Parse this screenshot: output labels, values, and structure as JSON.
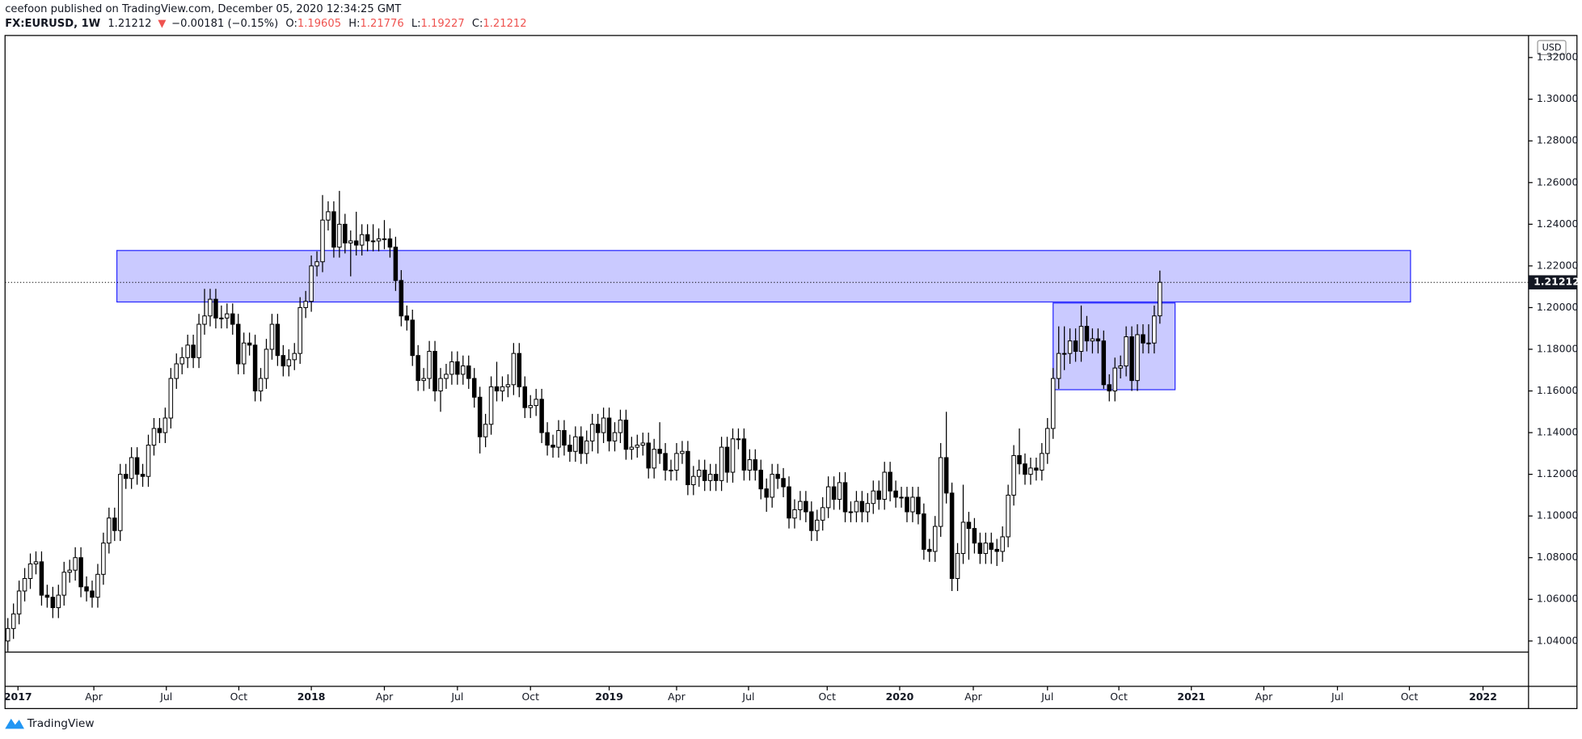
{
  "header": {
    "published": "ceefoon published on TradingView.com, December 05, 2020 12:34:25 GMT",
    "symbol": "FX:EURUSD, 1W",
    "last": "1.21212",
    "change_arrow": "▼",
    "change": "−0.00181 (−0.15%)",
    "ohlc": [
      {
        "label": "O:",
        "value": "1.19605"
      },
      {
        "label": "H:",
        "value": "1.21776"
      },
      {
        "label": "L:",
        "value": "1.19227"
      },
      {
        "label": "C:",
        "value": "1.21212"
      }
    ]
  },
  "chart_data": {
    "type": "candlestick",
    "currency": "USD",
    "up_color": "#ffffff",
    "down_color": "#000000",
    "xlim": [
      -0.5,
      270.6
    ],
    "xticks": [
      {
        "value": 1.8,
        "label": "2017"
      },
      {
        "value": 15.3,
        "label": "Apr"
      },
      {
        "value": 28.2,
        "label": "Jul"
      },
      {
        "value": 41.1,
        "label": "Oct"
      },
      {
        "value": 54,
        "label": "2018"
      },
      {
        "value": 67,
        "label": "Apr"
      },
      {
        "value": 80,
        "label": "Jul"
      },
      {
        "value": 93,
        "label": "Oct"
      },
      {
        "value": 107,
        "label": "2019"
      },
      {
        "value": 119,
        "label": "Apr"
      },
      {
        "value": 131.8,
        "label": "Jul"
      },
      {
        "value": 145.8,
        "label": "Oct"
      },
      {
        "value": 158.7,
        "label": "2020"
      },
      {
        "value": 171.8,
        "label": "Apr"
      },
      {
        "value": 185,
        "label": "Jul"
      },
      {
        "value": 197.7,
        "label": "Oct"
      },
      {
        "value": 210.6,
        "label": "2021"
      },
      {
        "value": 223.5,
        "label": "Apr"
      },
      {
        "value": 236.6,
        "label": "Jul"
      },
      {
        "value": 249.4,
        "label": "Oct"
      },
      {
        "value": 262.5,
        "label": "2022"
      }
    ],
    "ylim": [
      1.0347,
      1.3301
    ],
    "yticks": [
      {
        "value": 1.04,
        "label": "1.04000"
      },
      {
        "value": 1.06,
        "label": "1.06000"
      },
      {
        "value": 1.08,
        "label": "1.08000"
      },
      {
        "value": 1.1,
        "label": "1.10000"
      },
      {
        "value": 1.12,
        "label": "1.12000"
      },
      {
        "value": 1.14,
        "label": "1.14000"
      },
      {
        "value": 1.16,
        "label": "1.16000"
      },
      {
        "value": 1.18,
        "label": "1.18000"
      },
      {
        "value": 1.2,
        "label": "1.20000"
      },
      {
        "value": 1.22,
        "label": "1.22000"
      },
      {
        "value": 1.24,
        "label": "1.24000"
      },
      {
        "value": 1.26,
        "label": "1.26000"
      },
      {
        "value": 1.28,
        "label": "1.28000"
      },
      {
        "value": 1.3,
        "label": "1.30000"
      },
      {
        "value": 1.32,
        "label": "1.32000"
      }
    ],
    "last_price": 1.21212,
    "zones": [
      {
        "x": [
          19.4,
          249.6
        ],
        "y": [
          1.2027,
          1.2274
        ],
        "color": "#2a2aff"
      },
      {
        "x": [
          186,
          207.7
        ],
        "y": [
          1.1606,
          1.2022
        ],
        "color": "#2a2aff"
      }
    ],
    "ohlc": [
      [
        1.04,
        1.051,
        1.035,
        1.046
      ],
      [
        1.046,
        1.058,
        1.041,
        1.053
      ],
      [
        1.053,
        1.069,
        1.048,
        1.064
      ],
      [
        1.064,
        1.075,
        1.059,
        1.07
      ],
      [
        1.07,
        1.082,
        1.065,
        1.077
      ],
      [
        1.077,
        1.083,
        1.072,
        1.078
      ],
      [
        1.078,
        1.083,
        1.057,
        1.062
      ],
      [
        1.062,
        1.067,
        1.056,
        1.061
      ],
      [
        1.061,
        1.066,
        1.051,
        1.056
      ],
      [
        1.056,
        1.067,
        1.051,
        1.062
      ],
      [
        1.062,
        1.078,
        1.057,
        1.073
      ],
      [
        1.073,
        1.079,
        1.068,
        1.074
      ],
      [
        1.074,
        1.085,
        1.069,
        1.08
      ],
      [
        1.08,
        1.085,
        1.061,
        1.066
      ],
      [
        1.066,
        1.071,
        1.059,
        1.064
      ],
      [
        1.064,
        1.069,
        1.056,
        1.061
      ],
      [
        1.061,
        1.077,
        1.056,
        1.072
      ],
      [
        1.072,
        1.092,
        1.067,
        1.087
      ],
      [
        1.087,
        1.104,
        1.082,
        1.099
      ],
      [
        1.099,
        1.104,
        1.088,
        1.093
      ],
      [
        1.093,
        1.125,
        1.088,
        1.12
      ],
      [
        1.12,
        1.125,
        1.113,
        1.118
      ],
      [
        1.118,
        1.133,
        1.113,
        1.128
      ],
      [
        1.128,
        1.133,
        1.115,
        1.12
      ],
      [
        1.12,
        1.125,
        1.114,
        1.119
      ],
      [
        1.119,
        1.139,
        1.114,
        1.134
      ],
      [
        1.134,
        1.147,
        1.129,
        1.142
      ],
      [
        1.142,
        1.147,
        1.135,
        1.14
      ],
      [
        1.14,
        1.152,
        1.135,
        1.147
      ],
      [
        1.147,
        1.171,
        1.142,
        1.166
      ],
      [
        1.166,
        1.178,
        1.161,
        1.173
      ],
      [
        1.173,
        1.181,
        1.168,
        1.176
      ],
      [
        1.176,
        1.187,
        1.171,
        1.182
      ],
      [
        1.182,
        1.187,
        1.171,
        1.176
      ],
      [
        1.176,
        1.197,
        1.171,
        1.192
      ],
      [
        1.192,
        1.209,
        1.187,
        1.196
      ],
      [
        1.196,
        1.209,
        1.191,
        1.204
      ],
      [
        1.204,
        1.209,
        1.19,
        1.195
      ],
      [
        1.195,
        1.201,
        1.19,
        1.195
      ],
      [
        1.195,
        1.202,
        1.19,
        1.197
      ],
      [
        1.197,
        1.202,
        1.187,
        1.192
      ],
      [
        1.192,
        1.197,
        1.168,
        1.173
      ],
      [
        1.173,
        1.188,
        1.168,
        1.183
      ],
      [
        1.183,
        1.188,
        1.177,
        1.182
      ],
      [
        1.182,
        1.187,
        1.155,
        1.16
      ],
      [
        1.16,
        1.171,
        1.155,
        1.166
      ],
      [
        1.166,
        1.185,
        1.161,
        1.18
      ],
      [
        1.18,
        1.197,
        1.175,
        1.192
      ],
      [
        1.192,
        1.197,
        1.172,
        1.177
      ],
      [
        1.177,
        1.182,
        1.167,
        1.172
      ],
      [
        1.172,
        1.18,
        1.167,
        1.175
      ],
      [
        1.175,
        1.183,
        1.17,
        1.178
      ],
      [
        1.178,
        1.205,
        1.173,
        1.2
      ],
      [
        1.2,
        1.208,
        1.195,
        1.203
      ],
      [
        1.203,
        1.225,
        1.198,
        1.22
      ],
      [
        1.22,
        1.227,
        1.215,
        1.222
      ],
      [
        1.222,
        1.254,
        1.217,
        1.242
      ],
      [
        1.242,
        1.251,
        1.237,
        1.246
      ],
      [
        1.246,
        1.251,
        1.224,
        1.229
      ],
      [
        1.229,
        1.256,
        1.224,
        1.24
      ],
      [
        1.24,
        1.245,
        1.226,
        1.231
      ],
      [
        1.231,
        1.237,
        1.215,
        1.232
      ],
      [
        1.232,
        1.246,
        1.225,
        1.23
      ],
      [
        1.23,
        1.24,
        1.225,
        1.235
      ],
      [
        1.235,
        1.24,
        1.227,
        1.232
      ],
      [
        1.232,
        1.24,
        1.227,
        1.232
      ],
      [
        1.232,
        1.238,
        1.227,
        1.233
      ],
      [
        1.233,
        1.242,
        1.228,
        1.233
      ],
      [
        1.233,
        1.238,
        1.224,
        1.229
      ],
      [
        1.229,
        1.234,
        1.208,
        1.213
      ],
      [
        1.213,
        1.218,
        1.191,
        1.196
      ],
      [
        1.196,
        1.201,
        1.189,
        1.194
      ],
      [
        1.194,
        1.199,
        1.172,
        1.177
      ],
      [
        1.177,
        1.182,
        1.16,
        1.165
      ],
      [
        1.165,
        1.171,
        1.16,
        1.166
      ],
      [
        1.166,
        1.184,
        1.161,
        1.179
      ],
      [
        1.179,
        1.184,
        1.155,
        1.16
      ],
      [
        1.16,
        1.171,
        1.15,
        1.166
      ],
      [
        1.166,
        1.173,
        1.161,
        1.168
      ],
      [
        1.168,
        1.179,
        1.163,
        1.174
      ],
      [
        1.174,
        1.179,
        1.163,
        1.168
      ],
      [
        1.168,
        1.177,
        1.163,
        1.172
      ],
      [
        1.172,
        1.177,
        1.161,
        1.166
      ],
      [
        1.166,
        1.171,
        1.152,
        1.157
      ],
      [
        1.157,
        1.162,
        1.13,
        1.138
      ],
      [
        1.138,
        1.149,
        1.133,
        1.144
      ],
      [
        1.144,
        1.167,
        1.139,
        1.162
      ],
      [
        1.162,
        1.174,
        1.155,
        1.16
      ],
      [
        1.16,
        1.167,
        1.155,
        1.162
      ],
      [
        1.162,
        1.168,
        1.157,
        1.163
      ],
      [
        1.163,
        1.183,
        1.158,
        1.178
      ],
      [
        1.178,
        1.183,
        1.157,
        1.162
      ],
      [
        1.162,
        1.167,
        1.147,
        1.152
      ],
      [
        1.152,
        1.158,
        1.147,
        1.153
      ],
      [
        1.153,
        1.161,
        1.148,
        1.156
      ],
      [
        1.156,
        1.161,
        1.135,
        1.14
      ],
      [
        1.14,
        1.145,
        1.129,
        1.134
      ],
      [
        1.134,
        1.139,
        1.128,
        1.133
      ],
      [
        1.133,
        1.146,
        1.128,
        1.141
      ],
      [
        1.141,
        1.146,
        1.129,
        1.134
      ],
      [
        1.134,
        1.139,
        1.126,
        1.131
      ],
      [
        1.131,
        1.143,
        1.126,
        1.138
      ],
      [
        1.138,
        1.143,
        1.125,
        1.13
      ],
      [
        1.13,
        1.141,
        1.125,
        1.136
      ],
      [
        1.136,
        1.149,
        1.131,
        1.144
      ],
      [
        1.144,
        1.149,
        1.13,
        1.14
      ],
      [
        1.14,
        1.152,
        1.135,
        1.147
      ],
      [
        1.147,
        1.152,
        1.131,
        1.136
      ],
      [
        1.136,
        1.145,
        1.131,
        1.14
      ],
      [
        1.14,
        1.151,
        1.135,
        1.146
      ],
      [
        1.146,
        1.151,
        1.127,
        1.132
      ],
      [
        1.132,
        1.138,
        1.127,
        1.133
      ],
      [
        1.133,
        1.139,
        1.128,
        1.134
      ],
      [
        1.134,
        1.14,
        1.129,
        1.135
      ],
      [
        1.135,
        1.14,
        1.118,
        1.123
      ],
      [
        1.123,
        1.137,
        1.118,
        1.132
      ],
      [
        1.132,
        1.145,
        1.125,
        1.13
      ],
      [
        1.13,
        1.135,
        1.117,
        1.122
      ],
      [
        1.122,
        1.127,
        1.117,
        1.122
      ],
      [
        1.122,
        1.135,
        1.117,
        1.13
      ],
      [
        1.13,
        1.136,
        1.125,
        1.131
      ],
      [
        1.131,
        1.136,
        1.11,
        1.115
      ],
      [
        1.115,
        1.124,
        1.11,
        1.119
      ],
      [
        1.119,
        1.127,
        1.114,
        1.122
      ],
      [
        1.122,
        1.127,
        1.112,
        1.117
      ],
      [
        1.117,
        1.125,
        1.112,
        1.12
      ],
      [
        1.12,
        1.125,
        1.112,
        1.117
      ],
      [
        1.117,
        1.138,
        1.112,
        1.133
      ],
      [
        1.133,
        1.138,
        1.116,
        1.121
      ],
      [
        1.121,
        1.142,
        1.116,
        1.137
      ],
      [
        1.137,
        1.142,
        1.132,
        1.137
      ],
      [
        1.137,
        1.142,
        1.117,
        1.122
      ],
      [
        1.122,
        1.132,
        1.117,
        1.127
      ],
      [
        1.127,
        1.132,
        1.117,
        1.122
      ],
      [
        1.122,
        1.127,
        1.108,
        1.113
      ],
      [
        1.113,
        1.118,
        1.102,
        1.109
      ],
      [
        1.109,
        1.125,
        1.104,
        1.12
      ],
      [
        1.12,
        1.125,
        1.113,
        1.118
      ],
      [
        1.118,
        1.123,
        1.109,
        1.114
      ],
      [
        1.114,
        1.119,
        1.094,
        1.099
      ],
      [
        1.099,
        1.108,
        1.094,
        1.103
      ],
      [
        1.103,
        1.112,
        1.098,
        1.107
      ],
      [
        1.107,
        1.112,
        1.097,
        1.102
      ],
      [
        1.102,
        1.107,
        1.088,
        1.093
      ],
      [
        1.093,
        1.103,
        1.088,
        1.098
      ],
      [
        1.098,
        1.109,
        1.093,
        1.104
      ],
      [
        1.104,
        1.119,
        1.099,
        1.114
      ],
      [
        1.114,
        1.119,
        1.103,
        1.108
      ],
      [
        1.108,
        1.121,
        1.103,
        1.116
      ],
      [
        1.116,
        1.121,
        1.097,
        1.102
      ],
      [
        1.102,
        1.107,
        1.097,
        1.102
      ],
      [
        1.102,
        1.112,
        1.097,
        1.107
      ],
      [
        1.107,
        1.112,
        1.097,
        1.102
      ],
      [
        1.102,
        1.111,
        1.097,
        1.106
      ],
      [
        1.106,
        1.117,
        1.101,
        1.112
      ],
      [
        1.112,
        1.117,
        1.103,
        1.108
      ],
      [
        1.108,
        1.126,
        1.103,
        1.121
      ],
      [
        1.121,
        1.126,
        1.107,
        1.112
      ],
      [
        1.112,
        1.117,
        1.104,
        1.109
      ],
      [
        1.109,
        1.114,
        1.104,
        1.109
      ],
      [
        1.109,
        1.114,
        1.097,
        1.102
      ],
      [
        1.102,
        1.114,
        1.097,
        1.109
      ],
      [
        1.109,
        1.114,
        1.096,
        1.101
      ],
      [
        1.101,
        1.106,
        1.079,
        1.084
      ],
      [
        1.084,
        1.089,
        1.078,
        1.083
      ],
      [
        1.083,
        1.1,
        1.078,
        1.095
      ],
      [
        1.095,
        1.135,
        1.09,
        1.128
      ],
      [
        1.128,
        1.15,
        1.106,
        1.111
      ],
      [
        1.111,
        1.116,
        1.064,
        1.07
      ],
      [
        1.07,
        1.087,
        1.064,
        1.082
      ],
      [
        1.082,
        1.115,
        1.077,
        1.097
      ],
      [
        1.097,
        1.102,
        1.079,
        1.094
      ],
      [
        1.094,
        1.099,
        1.082,
        1.087
      ],
      [
        1.087,
        1.092,
        1.077,
        1.082
      ],
      [
        1.082,
        1.092,
        1.077,
        1.087
      ],
      [
        1.087,
        1.092,
        1.077,
        1.084
      ],
      [
        1.084,
        1.089,
        1.076,
        1.083
      ],
      [
        1.083,
        1.095,
        1.078,
        1.09
      ],
      [
        1.09,
        1.115,
        1.085,
        1.11
      ],
      [
        1.11,
        1.134,
        1.105,
        1.129
      ],
      [
        1.129,
        1.142,
        1.12,
        1.125
      ],
      [
        1.125,
        1.13,
        1.115,
        1.12
      ],
      [
        1.12,
        1.128,
        1.115,
        1.123
      ],
      [
        1.123,
        1.128,
        1.117,
        1.122
      ],
      [
        1.122,
        1.135,
        1.117,
        1.13
      ],
      [
        1.13,
        1.147,
        1.125,
        1.142
      ],
      [
        1.142,
        1.171,
        1.137,
        1.166
      ],
      [
        1.166,
        1.191,
        1.161,
        1.178
      ],
      [
        1.178,
        1.191,
        1.17,
        1.178
      ],
      [
        1.178,
        1.19,
        1.173,
        1.184
      ],
      [
        1.184,
        1.19,
        1.174,
        1.179
      ],
      [
        1.179,
        1.201,
        1.174,
        1.191
      ],
      [
        1.191,
        1.196,
        1.179,
        1.184
      ],
      [
        1.184,
        1.19,
        1.178,
        1.185
      ],
      [
        1.185,
        1.19,
        1.178,
        1.184
      ],
      [
        1.184,
        1.189,
        1.161,
        1.163
      ],
      [
        1.163,
        1.168,
        1.155,
        1.16
      ],
      [
        1.16,
        1.176,
        1.155,
        1.171
      ],
      [
        1.171,
        1.177,
        1.166,
        1.172
      ],
      [
        1.172,
        1.191,
        1.167,
        1.186
      ],
      [
        1.186,
        1.191,
        1.16,
        1.165
      ],
      [
        1.165,
        1.192,
        1.16,
        1.187
      ],
      [
        1.187,
        1.192,
        1.178,
        1.183
      ],
      [
        1.183,
        1.192,
        1.178,
        1.183
      ],
      [
        1.183,
        1.201,
        1.178,
        1.196
      ],
      [
        1.19605,
        1.21776,
        1.19227,
        1.21212
      ]
    ]
  },
  "footer": {
    "brand": "TradingView"
  }
}
